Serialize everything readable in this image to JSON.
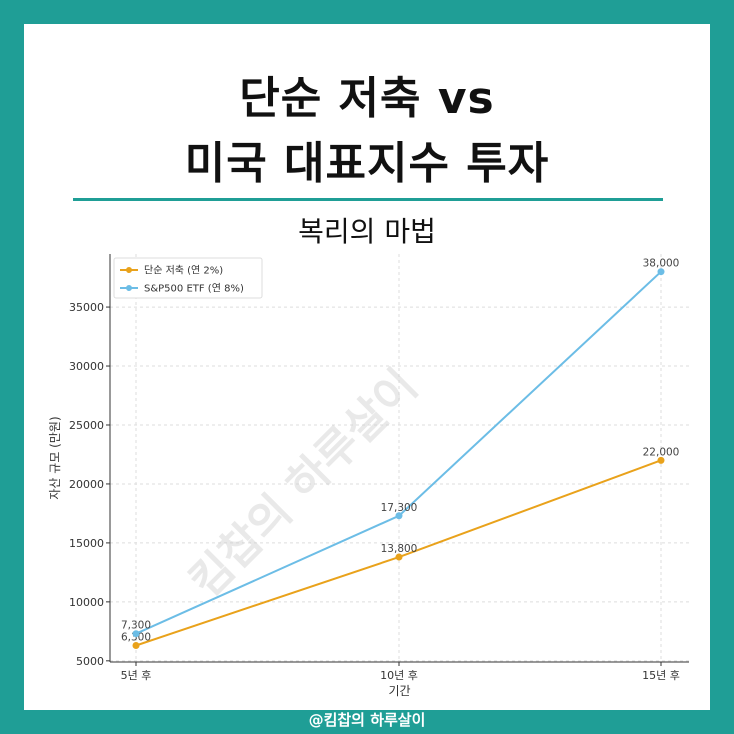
{
  "header": {
    "title_line1": "단순 저축 vs",
    "title_line2": "미국 대표지수 투자",
    "subtitle": "복리의 마법"
  },
  "footer": {
    "text": "@킴찹의 하루살이"
  },
  "watermark": "킴찹의 하루살이",
  "colors": {
    "background": "#1f9e96",
    "savings": "#e9a21b",
    "etf": "#6cbde6"
  },
  "chart_data": {
    "type": "line",
    "categories": [
      "5년 후",
      "10년 후",
      "15년 후"
    ],
    "series": [
      {
        "name": "단순 저축 (연 2%)",
        "values": [
          6300,
          13800,
          22000
        ],
        "labels": [
          "6,300",
          "13,800",
          "22,000"
        ],
        "color": "#e9a21b"
      },
      {
        "name": "S&P500 ETF (연 8%)",
        "values": [
          7300,
          17300,
          38000
        ],
        "labels": [
          "7,300",
          "17,300",
          "38,000"
        ],
        "color": "#6cbde6"
      }
    ],
    "xlabel": "기간",
    "ylabel": "자산 규모 (만원)",
    "ylim": [
      4900,
      39500
    ],
    "yticks": [
      5000,
      10000,
      15000,
      20000,
      25000,
      30000,
      35000
    ],
    "grid": true,
    "legend_position": "top-left"
  }
}
